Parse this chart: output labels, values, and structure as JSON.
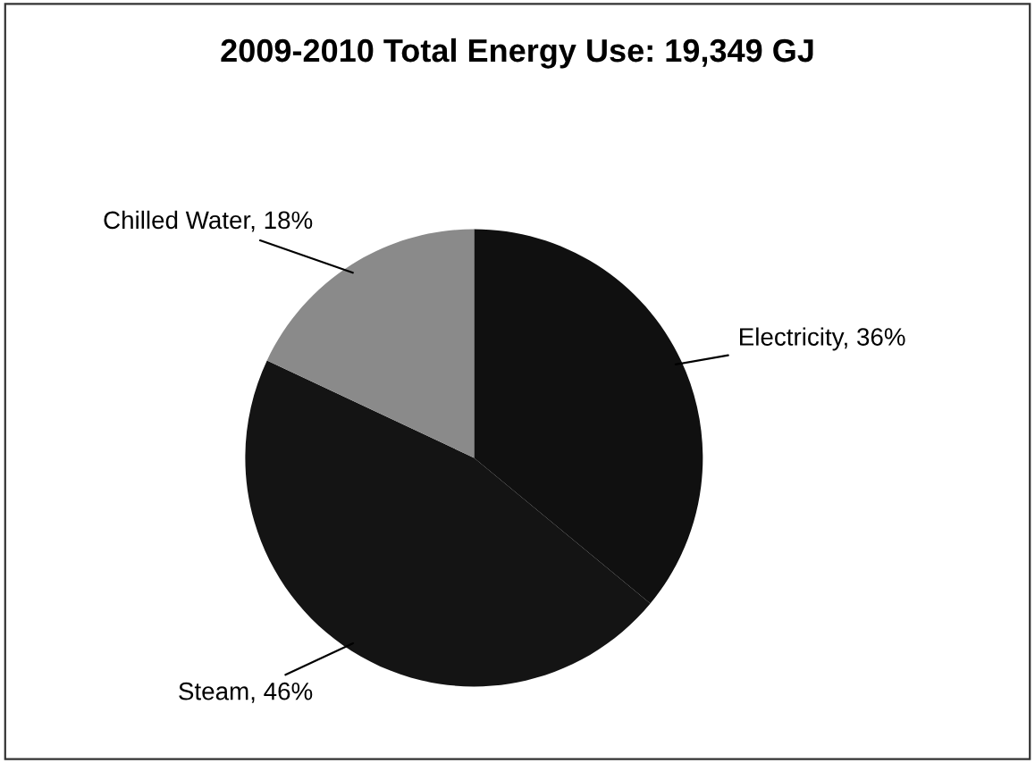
{
  "chart_data": {
    "type": "pie",
    "title": "2009-2010 Total Energy Use: 19,349 GJ",
    "categories": [
      "Electricity",
      "Steam",
      "Chilled Water"
    ],
    "values": [
      36,
      46,
      18
    ],
    "value_labels": [
      "36%",
      "46%",
      "18%"
    ],
    "colors": [
      "#101010",
      "#141414",
      "#8a8a8a"
    ],
    "legend": false
  }
}
